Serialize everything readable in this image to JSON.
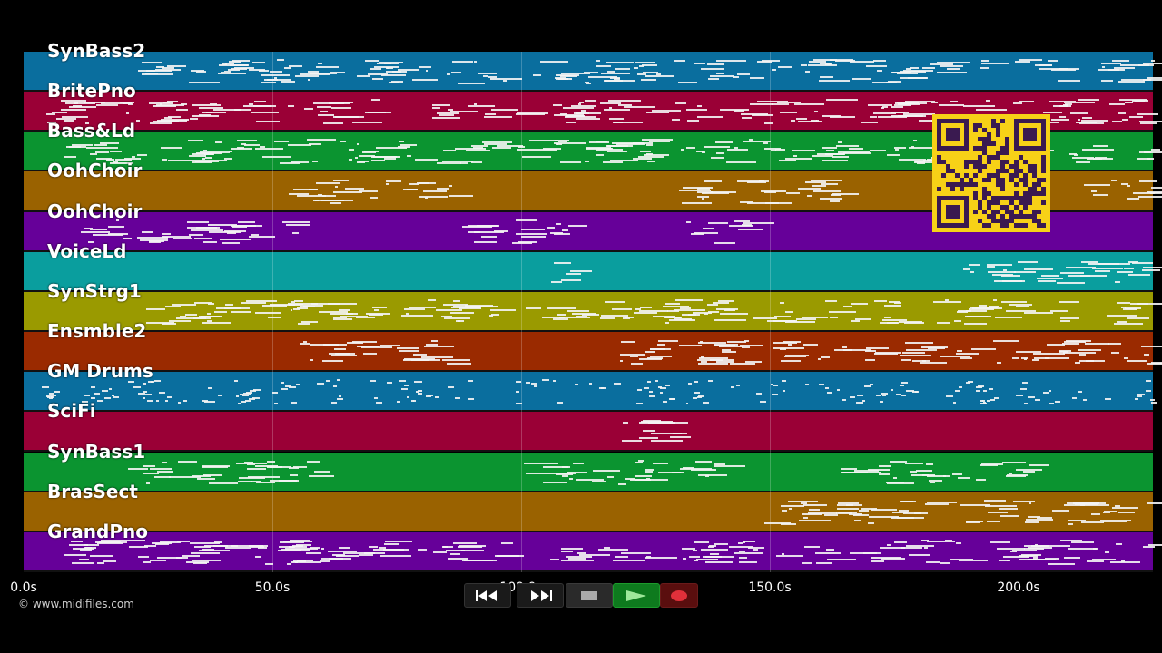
{
  "colors": {
    "track_palette": [
      "#0a6e9e",
      "#9a0036",
      "#0b9430",
      "#9a6200",
      "#660099",
      "#0a9e9e",
      "#9a9a00",
      "#9a2a00"
    ],
    "note": "#f4f4f4",
    "qr_bg": "#f7d117",
    "qr_fg": "#3a1a50"
  },
  "tracks": [
    {
      "label": "SynBass2"
    },
    {
      "label": "BritePno"
    },
    {
      "label": "Bass&Ld"
    },
    {
      "label": "OohChoir"
    },
    {
      "label": "OohChoir"
    },
    {
      "label": "VoiceLd"
    },
    {
      "label": "SynStrg1"
    },
    {
      "label": "Ensmble2"
    },
    {
      "label": "GM Drums"
    },
    {
      "label": "SciFi"
    },
    {
      "label": "SynBass1"
    },
    {
      "label": "BrasSect"
    },
    {
      "label": "GrandPno"
    }
  ],
  "time_axis": {
    "ticks": [
      "0.0s",
      "50.0s",
      "100.0s",
      "150.0s",
      "200.0s"
    ],
    "tick_seconds": [
      0,
      50,
      100,
      150,
      200
    ],
    "max_seconds": 227
  },
  "copyright": "© www.midifiles.com",
  "transport": {
    "rewind": "rewind-icon",
    "fast_forward": "fast-forward-icon",
    "stop": "stop-icon",
    "play": "play-icon",
    "record": "record-icon"
  }
}
